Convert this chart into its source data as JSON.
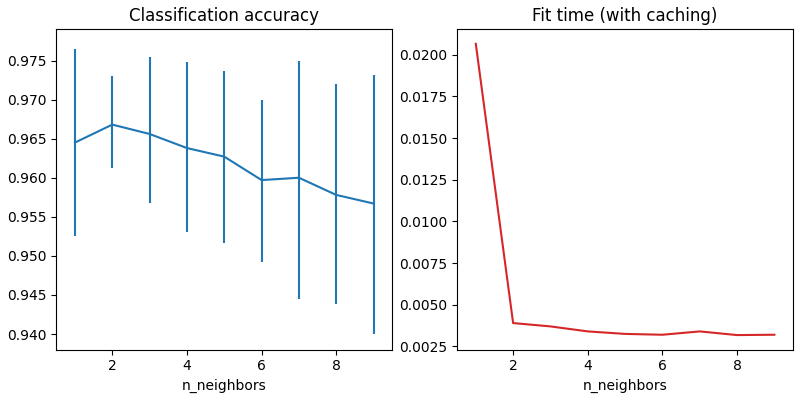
{
  "left_title": "Classification accuracy",
  "right_title": "Fit time (with caching)",
  "xlabel": "n_neighbors",
  "n_neighbors": [
    1,
    2,
    3,
    4,
    5,
    6,
    7,
    8,
    9
  ],
  "accuracy_mean": [
    0.9645,
    0.9668,
    0.9656,
    0.9638,
    0.9627,
    0.9597,
    0.96,
    0.9578,
    0.9567
  ],
  "accuracy_upper": [
    0.9765,
    0.973,
    0.9755,
    0.9748,
    0.9737,
    0.97,
    0.975,
    0.972,
    0.9732
  ],
  "accuracy_lower": [
    0.9525,
    0.9613,
    0.9568,
    0.953,
    0.9516,
    0.9492,
    0.9445,
    0.9438,
    0.94
  ],
  "fit_time": [
    0.02065,
    0.0039,
    0.0037,
    0.0034,
    0.00325,
    0.0032,
    0.0034,
    0.00318,
    0.0032
  ],
  "line_color_left": "#1f77b4",
  "line_color_right": "#d62728",
  "background_color": "#ffffff"
}
